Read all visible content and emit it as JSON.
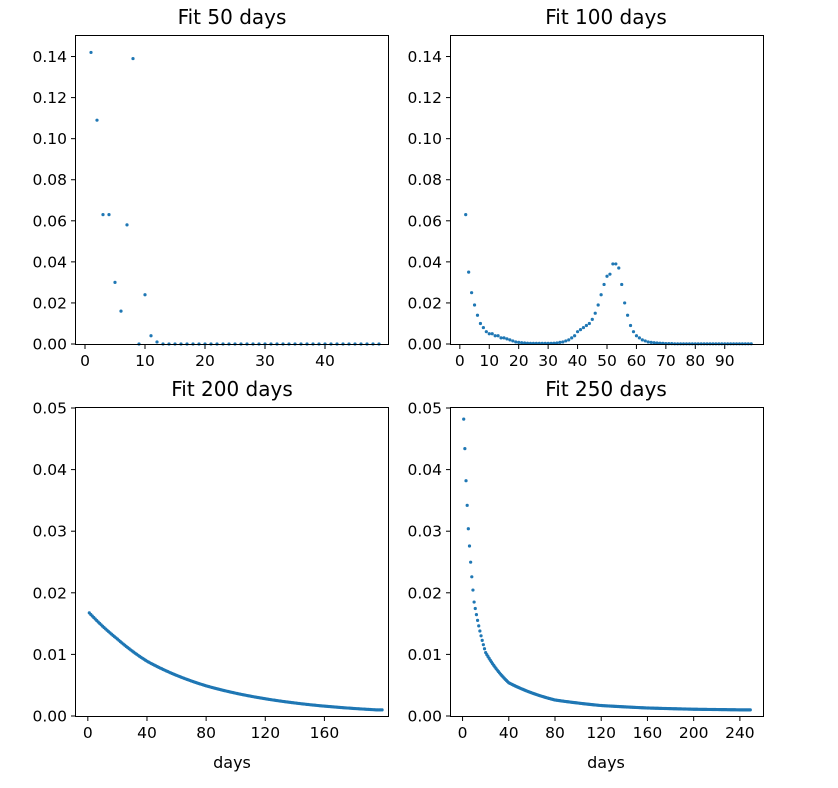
{
  "chart_data": [
    {
      "type": "scatter",
      "title": "Fit 50 days",
      "xlabel": "",
      "ylabel": "",
      "xlim": [
        -1.5,
        50.5
      ],
      "ylim": [
        0,
        0.15
      ],
      "xticks": [
        0,
        10,
        20,
        30,
        40
      ],
      "yticks": [
        0,
        0.02,
        0.04,
        0.06,
        0.08,
        0.1,
        0.12,
        0.14
      ],
      "xtick_labels": [
        "0",
        "10",
        "20",
        "30",
        "40"
      ],
      "ytick_labels": [
        "0.00",
        "0.02",
        "0.04",
        "0.06",
        "0.08",
        "0.10",
        "0.12",
        "0.14"
      ],
      "series": [
        {
          "name": "fit",
          "x": [
            1,
            2,
            3,
            4,
            5,
            6,
            7,
            8,
            9,
            10,
            11,
            12,
            13,
            14,
            15,
            16,
            17,
            18,
            19,
            20,
            21,
            22,
            23,
            24,
            25,
            26,
            27,
            28,
            29,
            30,
            31,
            32,
            33,
            34,
            35,
            36,
            37,
            38,
            39,
            40,
            41,
            42,
            43,
            44,
            45,
            46,
            47,
            48,
            49
          ],
          "y": [
            0.142,
            0.109,
            0.063,
            0.063,
            0.03,
            0.016,
            0.058,
            0.139,
            0,
            0.024,
            0.004,
            0.001,
            0,
            0,
            0,
            0,
            0,
            0,
            0,
            0,
            0,
            0,
            0,
            0,
            0,
            0,
            0,
            0,
            0,
            0,
            0,
            0,
            0,
            0,
            0,
            0,
            0,
            0,
            0,
            0,
            0,
            0,
            0,
            0,
            0,
            0,
            0,
            0,
            0
          ]
        }
      ]
    },
    {
      "type": "scatter",
      "title": "Fit 100 days",
      "xlabel": "",
      "ylabel": "",
      "xlim": [
        -3,
        103
      ],
      "ylim": [
        0,
        0.15
      ],
      "xticks": [
        0,
        10,
        20,
        30,
        40,
        50,
        60,
        70,
        80,
        90
      ],
      "yticks": [
        0,
        0.02,
        0.04,
        0.06,
        0.08,
        0.1,
        0.12,
        0.14
      ],
      "xtick_labels": [
        "0",
        "10",
        "20",
        "30",
        "40",
        "50",
        "60",
        "70",
        "80",
        "90"
      ],
      "ytick_labels": [
        "0.00",
        "0.02",
        "0.04",
        "0.06",
        "0.08",
        "0.10",
        "0.12",
        "0.14"
      ],
      "series": [
        {
          "name": "fit",
          "x": [
            2,
            3,
            4,
            5,
            6,
            7,
            8,
            9,
            10,
            11,
            12,
            13,
            14,
            15,
            16,
            17,
            18,
            19,
            20,
            21,
            22,
            23,
            24,
            25,
            26,
            27,
            28,
            29,
            30,
            31,
            32,
            33,
            34,
            35,
            36,
            37,
            38,
            39,
            40,
            41,
            42,
            43,
            44,
            45,
            46,
            47,
            48,
            49,
            50,
            51,
            52,
            53,
            54,
            55,
            56,
            57,
            58,
            59,
            60,
            61,
            62,
            63,
            64,
            65,
            66,
            67,
            68,
            69,
            70,
            71,
            72,
            73,
            74,
            75,
            76,
            77,
            78,
            79,
            80,
            81,
            82,
            83,
            84,
            85,
            86,
            87,
            88,
            89,
            90,
            91,
            92,
            93,
            94,
            95,
            96,
            97,
            98,
            99
          ],
          "y": [
            0.063,
            0.035,
            0.025,
            0.019,
            0.014,
            0.01,
            0.008,
            0.006,
            0.005,
            0.005,
            0.004,
            0.004,
            0.003,
            0.003,
            0.0025,
            0.002,
            0.0015,
            0.001,
            0.0008,
            0.0006,
            0.0005,
            0.0004,
            0.0003,
            0.0003,
            0.0003,
            0.0003,
            0.0003,
            0.0003,
            0.0003,
            0.0003,
            0.0004,
            0.0005,
            0.0008,
            0.001,
            0.0015,
            0.002,
            0.003,
            0.004,
            0.006,
            0.007,
            0.008,
            0.009,
            0.01,
            0.012,
            0.015,
            0.019,
            0.024,
            0.029,
            0.033,
            0.034,
            0.039,
            0.039,
            0.037,
            0.029,
            0.02,
            0.014,
            0.009,
            0.006,
            0.004,
            0.003,
            0.002,
            0.0015,
            0.001,
            0.0008,
            0.0006,
            0.0005,
            0.0004,
            0.0003,
            0.0002,
            0.0002,
            0.0002,
            0.0001,
            0.0001,
            0.0001,
            0.0001,
            0.0001,
            0.0001,
            0.0001,
            0.0001,
            0.0001,
            0.0001,
            0.0001,
            0.0001,
            0.0001,
            0.0001,
            0.0001,
            0.0001,
            0.0001,
            0.0001,
            0.0001,
            0.0001,
            0.0001,
            0.0001,
            0.0001,
            0.0001,
            0.0001,
            0.0001,
            0.0001
          ]
        }
      ]
    },
    {
      "type": "scatter",
      "title": "Fit 200 days",
      "xlabel": "days",
      "ylabel": "",
      "xlim": [
        -8,
        203
      ],
      "ylim": [
        0,
        0.05
      ],
      "xticks": [
        0,
        40,
        80,
        120,
        160
      ],
      "yticks": [
        0,
        0.01,
        0.02,
        0.03,
        0.04,
        0.05
      ],
      "xtick_labels": [
        "0",
        "40",
        "80",
        "120",
        "160"
      ],
      "ytick_labels": [
        "0.00",
        "0.01",
        "0.02",
        "0.03",
        "0.04",
        "0.05"
      ],
      "series": [
        {
          "name": "fit",
          "model": "exponential decay",
          "x_range": [
            1,
            199
          ],
          "x_step": 1,
          "y_start": 0.0169,
          "y_end": 0.001,
          "y_samples": {
            "0": 0.017,
            "20": 0.0125,
            "40": 0.0089,
            "80": 0.0049,
            "120": 0.0028,
            "160": 0.0016,
            "195": 0.001
          }
        }
      ]
    },
    {
      "type": "scatter",
      "title": "Fit 250 days",
      "xlabel": "days",
      "ylabel": "",
      "xlim": [
        -10,
        260
      ],
      "ylim": [
        0,
        0.05
      ],
      "xticks": [
        0,
        40,
        80,
        120,
        160,
        200,
        240
      ],
      "yticks": [
        0,
        0.01,
        0.02,
        0.03,
        0.04,
        0.05
      ],
      "xtick_labels": [
        "0",
        "40",
        "80",
        "120",
        "160",
        "200",
        "240"
      ],
      "ytick_labels": [
        "0.00",
        "0.01",
        "0.02",
        "0.03",
        "0.04",
        "0.05"
      ],
      "series": [
        {
          "name": "fit",
          "model": "rapid decay to floor",
          "x_range": [
            1,
            249
          ],
          "x_step": 1,
          "y_start": 0.0482,
          "y_end": 0.001,
          "y_samples": {
            "1": 0.0482,
            "2": 0.0434,
            "3": 0.0382,
            "4": 0.0342,
            "5": 0.0304,
            "6": 0.0276,
            "10": 0.0185,
            "20": 0.0103,
            "40": 0.0054,
            "80": 0.0026,
            "120": 0.0017,
            "160": 0.0013,
            "200": 0.0011,
            "240": 0.001
          }
        }
      ]
    }
  ]
}
